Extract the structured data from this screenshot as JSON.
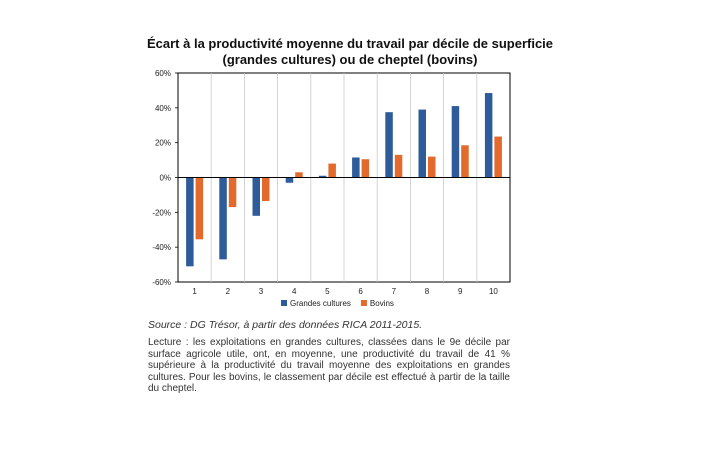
{
  "chart_data": {
    "type": "bar",
    "title_line1": "Écart à la productivité moyenne du travail par décile de superficie",
    "title_line2": "(grandes cultures) ou de cheptel (bovins)",
    "categories": [
      "1",
      "2",
      "3",
      "4",
      "5",
      "6",
      "7",
      "8",
      "9",
      "10"
    ],
    "series": [
      {
        "name": "Grandes cultures",
        "color": "#2E5C9A",
        "values": [
          -51,
          -47,
          -22,
          -3,
          1,
          11.5,
          37.5,
          39,
          41,
          48.5
        ]
      },
      {
        "name": "Bovins",
        "color": "#E26A2C",
        "values": [
          -35.5,
          -17,
          -13.5,
          3,
          8,
          10.5,
          13,
          12,
          18.5,
          23.5
        ]
      }
    ],
    "yticks": [
      "60%",
      "40%",
      "20%",
      "0%",
      "-20%",
      "-40%",
      "-60%"
    ],
    "ylim": [
      -60,
      60
    ],
    "grid": "vertical",
    "legend_position": "bottom"
  },
  "notes": {
    "source": "Source : DG Trésor, à partir des données RICA 2011-2015.",
    "reading": "Lecture : les exploitations en grandes cultures, classées dans le 9e décile par surface agricole utile, ont, en moyenne, une productivité du travail de 41 % supérieure à la productivité du travail moyenne des exploitations en grandes cultures. Pour les bovins, le classement par décile est effectué à partir de la taille du cheptel."
  }
}
